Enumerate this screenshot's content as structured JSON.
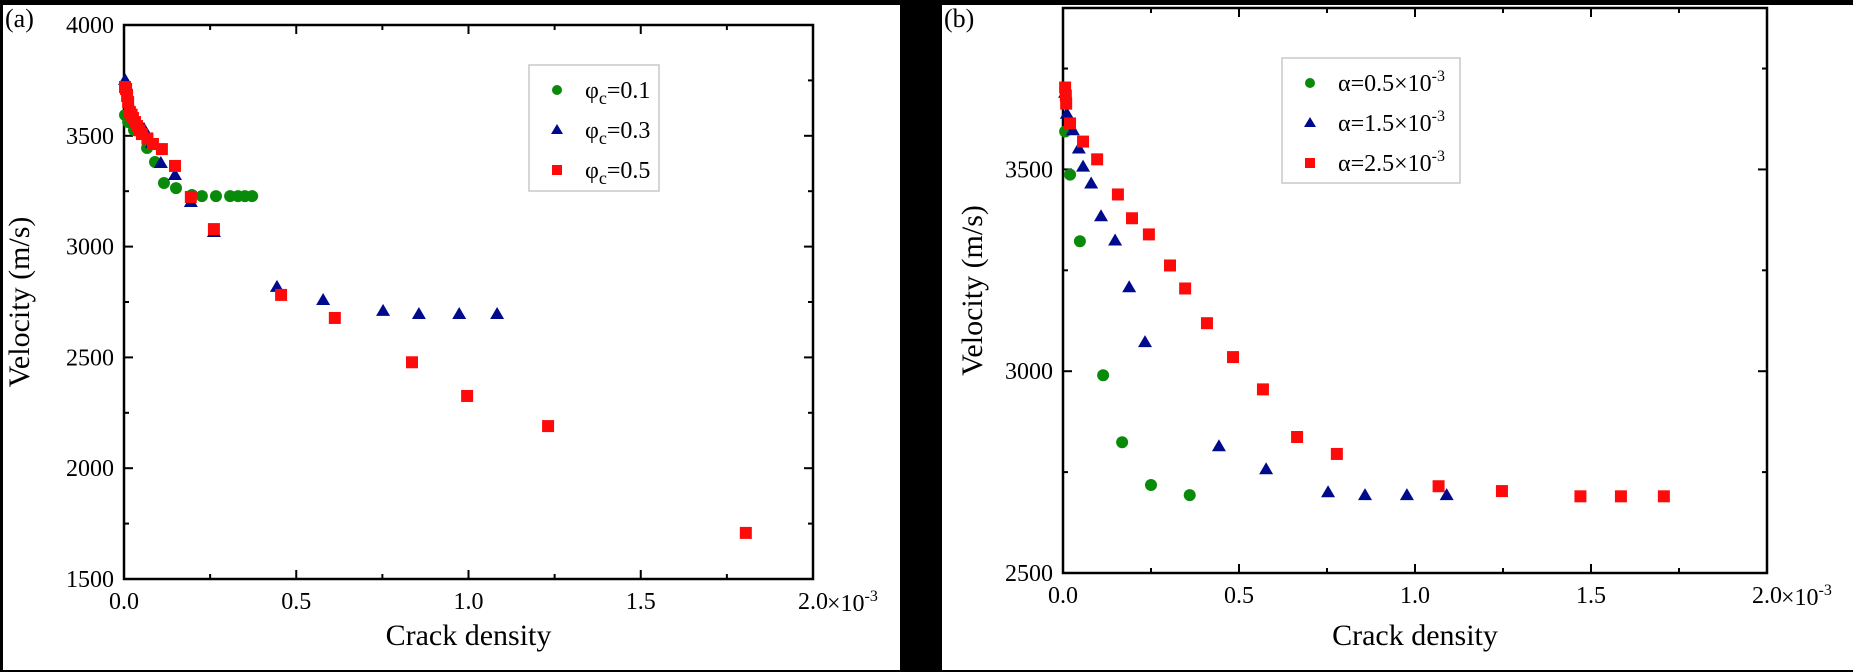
{
  "chart_data": [
    {
      "type": "scatter",
      "panel_label": "(a)",
      "xlabel": "Crack density",
      "ylabel": "Velocity (m/s)",
      "xlim": [
        0,
        2.0
      ],
      "ylim": [
        1500,
        4000
      ],
      "x_multiplier_label": "×10",
      "x_multiplier_exp": "-3",
      "xticks": [
        0.0,
        0.5,
        1.0,
        1.5,
        2.0
      ],
      "xtick_labels": [
        "0.0",
        "0.5",
        "1.0",
        "1.5",
        "2.0"
      ],
      "x_minor_ticks": [
        0.25,
        0.75,
        1.25,
        1.75
      ],
      "yticks": [
        1500,
        2000,
        2500,
        3000,
        3500,
        4000
      ],
      "ytick_labels": [
        "1500",
        "2000",
        "2500",
        "3000",
        "3500",
        "4000"
      ],
      "y_minor_ticks": [
        1750,
        2250,
        2750,
        3250,
        3750
      ],
      "grid": false,
      "legend_position": "top-right",
      "series": [
        {
          "name": "φc=0.1",
          "legend_main": "φ",
          "legend_sub": "c",
          "legend_value": "=0.1",
          "marker": "circle",
          "color": "#0a8a0a",
          "x": [
            0.003,
            0.012,
            0.029,
            0.067,
            0.09,
            0.116,
            0.151,
            0.197,
            0.226,
            0.267,
            0.308,
            0.331,
            0.351,
            0.372
          ],
          "y": [
            3594,
            3562,
            3526,
            3445,
            3382,
            3287,
            3264,
            3233,
            3228,
            3228,
            3228,
            3228,
            3228,
            3228
          ]
        },
        {
          "name": "φc=0.3",
          "legend_main": "φ",
          "legend_sub": "c",
          "legend_value": "=0.3",
          "marker": "triangle",
          "color": "#000a8c",
          "x": [
            0.003,
            0.006,
            0.017,
            0.035,
            0.058,
            0.081,
            0.107,
            0.148,
            0.194,
            0.261,
            0.444,
            0.578,
            0.752,
            0.856,
            0.973,
            1.083
          ],
          "y": [
            3752,
            3729,
            3639,
            3562,
            3531,
            3468,
            3377,
            3323,
            3201,
            3066,
            2818,
            2759,
            2710,
            2696,
            2696,
            2696
          ]
        },
        {
          "name": "φc=0.5",
          "legend_main": "φ",
          "legend_sub": "c",
          "legend_value": "=0.5",
          "marker": "square",
          "color": "#ff0a0a",
          "x": [
            0.003,
            0.006,
            0.009,
            0.012,
            0.017,
            0.022,
            0.026,
            0.032,
            0.038,
            0.045,
            0.052,
            0.068,
            0.084,
            0.11,
            0.148,
            0.194,
            0.261,
            0.456,
            0.612,
            0.836,
            0.996,
            1.231,
            1.805
          ],
          "y": [
            3720,
            3711,
            3680,
            3652,
            3607,
            3595,
            3580,
            3562,
            3544,
            3525,
            3508,
            3488,
            3463,
            3440,
            3364,
            3224,
            3079,
            2782,
            2678,
            2478,
            2326,
            2190,
            1708
          ]
        }
      ]
    },
    {
      "type": "scatter",
      "panel_label": "(b)",
      "xlabel": "Crack density",
      "ylabel": "Velocity (m/s)",
      "xlim": [
        0,
        2.0
      ],
      "ylim": [
        2500,
        3900
      ],
      "x_multiplier_label": "×10",
      "x_multiplier_exp": "-3",
      "xticks": [
        0.0,
        0.5,
        1.0,
        1.5,
        2.0
      ],
      "xtick_labels": [
        "0.0",
        "0.5",
        "1.0",
        "1.5",
        "2.0"
      ],
      "x_minor_ticks": [
        0.25,
        0.75,
        1.25,
        1.75
      ],
      "yticks": [
        2500,
        3000,
        3500
      ],
      "ytick_labels": [
        "2500",
        "3000",
        "3500"
      ],
      "y_minor_ticks": [
        2750,
        3250,
        3750
      ],
      "grid": false,
      "legend_position": "top-right",
      "series": [
        {
          "name": "α=0.5×10-3",
          "legend_main": "α=0.5×10",
          "legend_exp": "-3",
          "marker": "circle",
          "color": "#0a8a0a",
          "x": [
            0.006,
            0.02,
            0.048,
            0.114,
            0.168,
            0.25,
            0.36
          ],
          "y": [
            3594,
            3487,
            3322,
            2990,
            2824,
            2718,
            2693
          ]
        },
        {
          "name": "α=1.5×10-3",
          "legend_main": "α=1.5×10",
          "legend_exp": "-3",
          "marker": "triangle",
          "color": "#000a8c",
          "x": [
            0.006,
            0.011,
            0.028,
            0.045,
            0.057,
            0.08,
            0.108,
            0.148,
            0.188,
            0.233,
            0.443,
            0.577,
            0.753,
            0.858,
            0.977,
            1.09
          ],
          "y": [
            3690,
            3638,
            3597,
            3552,
            3507,
            3465,
            3384,
            3324,
            3208,
            3072,
            2814,
            2757,
            2700,
            2693,
            2693,
            2693
          ]
        },
        {
          "name": "α=2.5×10-3",
          "legend_main": "α=2.5×10",
          "legend_exp": "-3",
          "marker": "square",
          "color": "#ff0a0a",
          "x": [
            0.006,
            0.008,
            0.009,
            0.02,
            0.057,
            0.097,
            0.156,
            0.196,
            0.244,
            0.304,
            0.347,
            0.409,
            0.483,
            0.568,
            0.665,
            0.778,
            1.067,
            1.247,
            1.47,
            1.585,
            1.707
          ],
          "y": [
            3703,
            3683,
            3663,
            3614,
            3569,
            3525,
            3438,
            3379,
            3339,
            3262,
            3205,
            3119,
            3035,
            2955,
            2837,
            2795,
            2715,
            2703,
            2690,
            2690,
            2690
          ]
        }
      ]
    }
  ]
}
